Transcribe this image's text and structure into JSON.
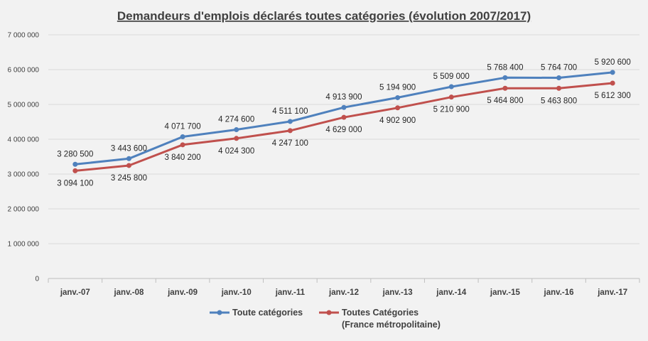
{
  "chart_data": {
    "type": "line",
    "title": "Demandeurs d'emplois déclarés toutes catégories (évolution 2007/2017)",
    "categories": [
      "janv.-07",
      "janv.-08",
      "janv.-09",
      "janv.-10",
      "janv.-11",
      "janv.-12",
      "janv.-13",
      "janv.-14",
      "janv.-15",
      "janv.-16",
      "janv.-17"
    ],
    "ylim": [
      0,
      7000000
    ],
    "yticks": [
      0,
      1000000,
      2000000,
      3000000,
      4000000,
      5000000,
      6000000,
      7000000
    ],
    "ytick_labels": [
      "0",
      "1 000 000",
      "2 000 000",
      "3 000 000",
      "4 000 000",
      "5 000 000",
      "6 000 000",
      "7 000 000"
    ],
    "grid": true,
    "legend_position": "bottom",
    "series": [
      {
        "name": "Toute catégories",
        "color": "#4f81bd",
        "values": [
          3280500,
          3443600,
          4071700,
          4274600,
          4511100,
          4913900,
          5194900,
          5509000,
          5768400,
          5764700,
          5920600
        ],
        "labels": [
          "3 280 500",
          "3 443 600",
          "4 071 700",
          "4 274 600",
          "4 511 100",
          "4 913 900",
          "5 194 900",
          "5 509 000",
          "5 768 400",
          "5 764 700",
          "5 920 600"
        ],
        "label_position": "above"
      },
      {
        "name": "Toutes Catégories",
        "name_line2": "(France métropolitaine)",
        "color": "#c0504d",
        "values": [
          3094100,
          3245800,
          3840200,
          4024300,
          4247100,
          4629000,
          4902900,
          5210900,
          5464800,
          5463800,
          5612300
        ],
        "labels": [
          "3 094 100",
          "3 245 800",
          "3 840 200",
          "4 024 300",
          "4 247 100",
          "4 629 000",
          "4 902 900",
          "5 210 900",
          "5 464 800",
          "5 463 800",
          "5 612 300"
        ],
        "label_position": "below"
      }
    ]
  }
}
